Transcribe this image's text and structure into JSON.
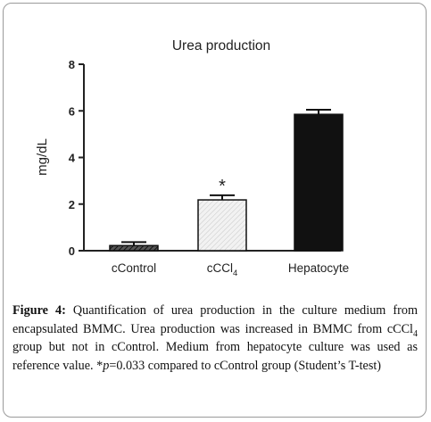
{
  "chart_data": {
    "type": "bar",
    "title": "Urea production",
    "xlabel": "",
    "ylabel": "mg/dL",
    "ylim": [
      0,
      8
    ],
    "yticks": [
      0,
      2,
      4,
      6,
      8
    ],
    "categories": [
      "cControl",
      "cCCl4",
      "Hepatocyte"
    ],
    "category_labels": [
      {
        "main": "cControl",
        "sub": ""
      },
      {
        "main": "cCCl",
        "sub": "4"
      },
      {
        "main": "Hepatocyte",
        "sub": ""
      }
    ],
    "values": [
      0.22,
      2.18,
      5.85
    ],
    "errors": [
      0.15,
      0.2,
      0.2
    ],
    "fills": [
      "hatched",
      "light-hatched",
      "solid"
    ],
    "colors": {
      "bar_dark": "#111111",
      "bar_light": "#eeeeee",
      "axis": "#222222"
    },
    "annotations": [
      {
        "category": "cCCl4",
        "text": "*"
      }
    ],
    "grid": false
  },
  "caption": {
    "label": "Figure 4:",
    "text1": " Quantification of urea production in the culture medium from encapsulated BMMC. Urea production was increased in BMMC from cCCl",
    "sub1": "4",
    "text2": " group but not in cControl. Medium from hepatocyte culture was used as reference value. *",
    "p_italic": "p",
    "text3": "=0.033 compared to cControl group (Student’s T-test)"
  }
}
